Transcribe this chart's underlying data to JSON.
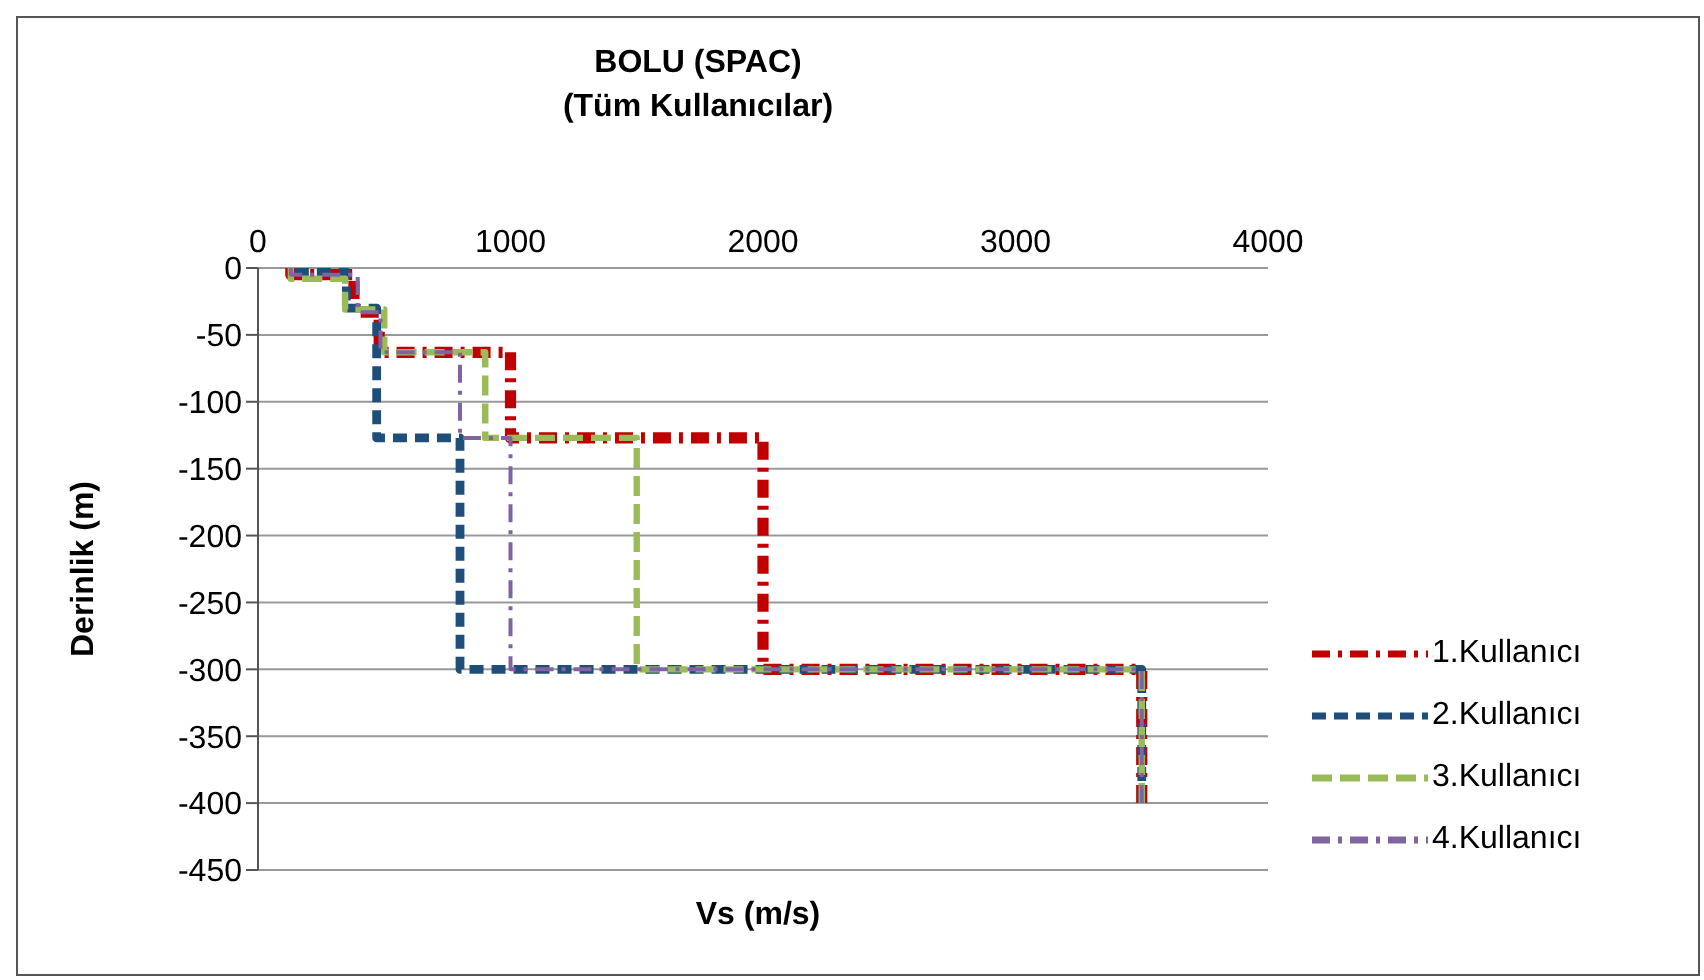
{
  "chart_data": {
    "type": "line",
    "title": "BOLU (SPAC)",
    "subtitle": "(Tüm Kullanıcılar)",
    "xlabel": "Vs (m/s)",
    "ylabel": "Derinlik (m)",
    "xlim": [
      0,
      4000
    ],
    "xticks": [
      0,
      1000,
      2000,
      3000,
      4000
    ],
    "ylim": [
      -450,
      0
    ],
    "yticks": [
      0,
      -50,
      -100,
      -150,
      -200,
      -250,
      -300,
      -350,
      -400,
      -450
    ],
    "grid": "y",
    "legend": "right",
    "marker": "none",
    "series": [
      {
        "name": "1.Kullanıcı",
        "color": "#c00000",
        "line_style": "dashdot",
        "x": [
          130,
          130,
          380,
          380,
          480,
          480,
          1000,
          1000,
          2000,
          2000,
          3500,
          3500
        ],
        "values": [
          0,
          -5,
          -5,
          -33,
          -33,
          -63,
          -63,
          -127,
          -127,
          -300,
          -300,
          -400
        ]
      },
      {
        "name": "2.Kullanıcı",
        "color": "#1f4e79",
        "line_style": "dashed",
        "x": [
          130,
          130,
          350,
          350,
          470,
          470,
          800,
          800,
          3500,
          3500
        ],
        "values": [
          0,
          -3,
          -3,
          -30,
          -30,
          -127,
          -127,
          -300,
          -300,
          -400
        ]
      },
      {
        "name": "3.Kullanıcı",
        "color": "#9bbb59",
        "line_style": "longdash",
        "x": [
          130,
          130,
          345,
          345,
          500,
          500,
          900,
          900,
          1500,
          1500,
          3500,
          3500
        ],
        "values": [
          0,
          -8,
          -8,
          -31,
          -31,
          -63,
          -63,
          -127,
          -127,
          -300,
          -300,
          -400
        ]
      },
      {
        "name": "4.Kullanıcı",
        "color": "#8064a2",
        "line_style": "dashdot",
        "x": [
          130,
          130,
          395,
          395,
          485,
          485,
          800,
          800,
          1000,
          1000,
          3500,
          3500
        ],
        "values": [
          0,
          -5,
          -5,
          -33,
          -33,
          -63,
          -63,
          -127,
          -127,
          -300,
          -300,
          -400
        ]
      }
    ]
  }
}
